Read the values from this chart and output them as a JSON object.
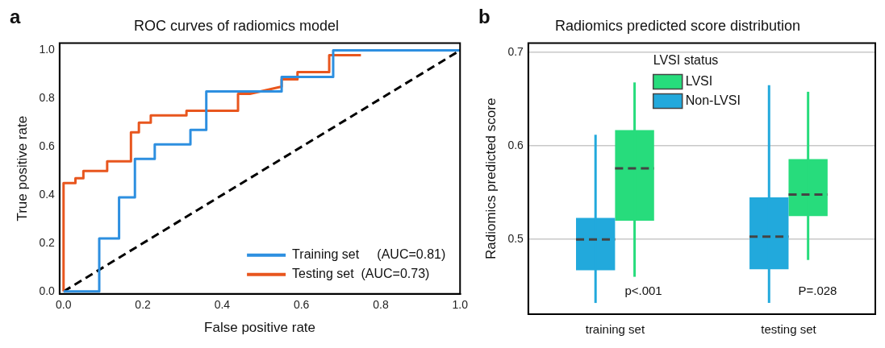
{
  "chart_data": [
    {
      "type": "line",
      "title": "ROC curves of radiomics model",
      "xlabel": "False positive rate",
      "ylabel": "True positive rate",
      "annotations": [
        "a"
      ],
      "xlim": [
        -0.01,
        1.0
      ],
      "ylim": [
        -0.01,
        1.03
      ],
      "xticks": [
        {
          "value": 0,
          "label": "0.0"
        },
        0.2,
        0.4,
        0.6,
        0.8,
        {
          "value": 1,
          "label": "1.0"
        }
      ],
      "yticks": [
        {
          "value": 0,
          "label": "0.0"
        },
        0.2,
        0.4,
        0.6,
        0.8,
        {
          "value": 1,
          "label": "1.0"
        }
      ],
      "grid": false,
      "legend": "bottom right",
      "marker": "none",
      "series": [
        {
          "name": "Training set     (AUC=0.81)",
          "color": "#2d8fe0",
          "x": [
            0,
            0.09,
            0.09,
            0.14,
            0.14,
            0.18,
            0.18,
            0.23,
            0.23,
            0.32,
            0.32,
            0.36,
            0.36,
            0.55,
            0.55,
            0.68,
            0.68,
            1
          ],
          "values": [
            0,
            0,
            0.22,
            0.22,
            0.39,
            0.39,
            0.55,
            0.55,
            0.61,
            0.61,
            0.67,
            0.67,
            0.83,
            0.83,
            0.89,
            0.89,
            1,
            1
          ]
        },
        {
          "name": "Testing set  (AUC=0.73)",
          "color": "#e8561e",
          "x": [
            0,
            0,
            0.03,
            0.03,
            0.05,
            0.05,
            0.11,
            0.11,
            0.17,
            0.17,
            0.19,
            0.19,
            0.22,
            0.22,
            0.31,
            0.31,
            0.44,
            0.44,
            0.47,
            0.55,
            0.55,
            0.59,
            0.59,
            0.67,
            0.67,
            0.75
          ],
          "values": [
            0,
            0.45,
            0.45,
            0.47,
            0.47,
            0.5,
            0.5,
            0.54,
            0.54,
            0.66,
            0.66,
            0.7,
            0.7,
            0.73,
            0.73,
            0.75,
            0.75,
            0.82,
            0.82,
            0.85,
            0.88,
            0.88,
            0.91,
            0.91,
            0.98,
            0.98
          ]
        },
        {
          "color": "#000000",
          "line_style": "dashed",
          "x": [
            0,
            1
          ],
          "values": [
            0,
            1
          ]
        }
      ]
    },
    {
      "type": "box",
      "title": "Radiomics predicted score distribution",
      "ylabel": "Radiomics predicted score",
      "legend_title": "LVSI status",
      "annotations": [
        "b",
        "p<.001",
        "P=.028"
      ],
      "categories": [
        "training set",
        "testing set"
      ],
      "ylim": [
        0.42,
        0.71
      ],
      "yticks": [
        0.5,
        0.6,
        0.7
      ],
      "grid": "y",
      "legend": "top",
      "series": [
        {
          "name": "LVSI",
          "color": "#27dc7c",
          "boxes": [
            {
              "low": 0.46,
              "q1": 0.52,
              "median": 0.576,
              "q3": 0.617,
              "high": 0.668
            },
            {
              "low": 0.478,
              "q1": 0.525,
              "median": 0.548,
              "q3": 0.586,
              "high": 0.658
            }
          ]
        },
        {
          "name": "Non-LVSI",
          "color": "#22a9dc",
          "boxes": [
            {
              "low": 0.432,
              "q1": 0.467,
              "median": 0.5,
              "q3": 0.523,
              "high": 0.612
            },
            {
              "low": 0.432,
              "q1": 0.468,
              "median": 0.503,
              "q3": 0.545,
              "high": 0.665
            }
          ]
        }
      ]
    }
  ]
}
